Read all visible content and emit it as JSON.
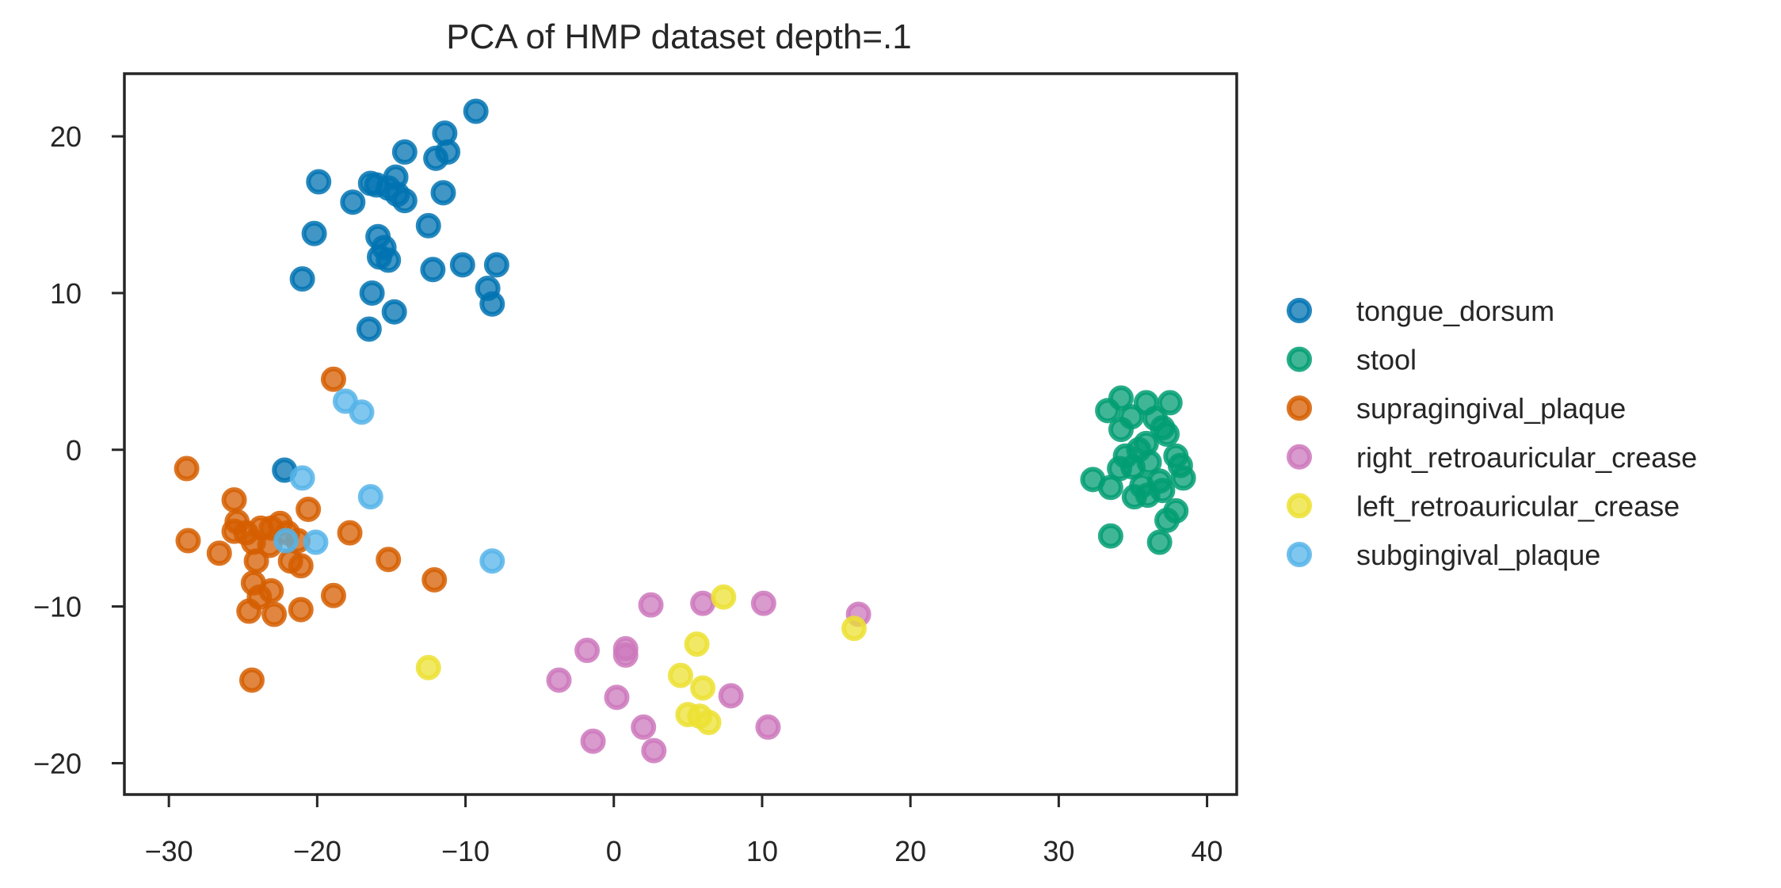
{
  "chart_data": {
    "type": "scatter",
    "title": "PCA of HMP dataset depth=.1",
    "xlabel": "",
    "ylabel": "",
    "xlim": [
      -33,
      42
    ],
    "ylim": [
      -22,
      24
    ],
    "xticks": [
      -30,
      -20,
      -10,
      0,
      10,
      20,
      30,
      40
    ],
    "yticks": [
      -20,
      -10,
      0,
      10,
      20
    ],
    "xtick_labels": [
      "−30",
      "−20",
      "−10",
      "0",
      "10",
      "20",
      "30",
      "40"
    ],
    "ytick_labels": [
      "−20",
      "−10",
      "0",
      "10",
      "20"
    ],
    "grid": false,
    "legend": "outside-right",
    "series": [
      {
        "name": "tongue_dorsum",
        "color": "#0173b2",
        "points": [
          [
            -9.3,
            21.6
          ],
          [
            -11.4,
            20.2
          ],
          [
            -11.2,
            19.0
          ],
          [
            -14.1,
            19.0
          ],
          [
            -12.0,
            18.6
          ],
          [
            -19.9,
            17.1
          ],
          [
            -16.4,
            17.0
          ],
          [
            -14.7,
            17.4
          ],
          [
            -16.0,
            16.9
          ],
          [
            -15.2,
            16.7
          ],
          [
            -14.6,
            16.3
          ],
          [
            -11.5,
            16.4
          ],
          [
            -17.6,
            15.8
          ],
          [
            -14.1,
            15.9
          ],
          [
            -12.5,
            14.3
          ],
          [
            -20.2,
            13.8
          ],
          [
            -15.9,
            13.6
          ],
          [
            -15.5,
            12.9
          ],
          [
            -15.8,
            12.3
          ],
          [
            -15.2,
            12.1
          ],
          [
            -10.2,
            11.8
          ],
          [
            -7.9,
            11.8
          ],
          [
            -12.2,
            11.5
          ],
          [
            -21.0,
            10.9
          ],
          [
            -8.5,
            10.3
          ],
          [
            -16.3,
            10.0
          ],
          [
            -8.2,
            9.3
          ],
          [
            -14.8,
            8.8
          ],
          [
            -16.5,
            7.7
          ],
          [
            -22.2,
            -1.3
          ]
        ]
      },
      {
        "name": "stool",
        "color": "#029e73",
        "points": [
          [
            34.2,
            3.3
          ],
          [
            37.5,
            3.0
          ],
          [
            35.9,
            3.0
          ],
          [
            33.3,
            2.5
          ],
          [
            34.9,
            2.1
          ],
          [
            36.5,
            2.0
          ],
          [
            37.0,
            1.4
          ],
          [
            37.3,
            1.0
          ],
          [
            34.2,
            1.3
          ],
          [
            35.9,
            0.4
          ],
          [
            35.4,
            0.0
          ],
          [
            34.5,
            -0.4
          ],
          [
            37.9,
            -0.4
          ],
          [
            38.2,
            -1.0
          ],
          [
            36.1,
            -0.8
          ],
          [
            35.0,
            -1.1
          ],
          [
            34.1,
            -1.2
          ],
          [
            32.3,
            -1.9
          ],
          [
            38.4,
            -1.8
          ],
          [
            36.8,
            -2.0
          ],
          [
            35.6,
            -2.3
          ],
          [
            33.5,
            -2.4
          ],
          [
            36.0,
            -2.9
          ],
          [
            35.1,
            -3.0
          ],
          [
            37.0,
            -2.6
          ],
          [
            37.9,
            -3.9
          ],
          [
            37.3,
            -4.5
          ],
          [
            33.5,
            -5.5
          ],
          [
            36.8,
            -5.9
          ]
        ]
      },
      {
        "name": "supragingival_plaque",
        "color": "#d55e00",
        "points": [
          [
            -18.9,
            4.5
          ],
          [
            -28.8,
            -1.2
          ],
          [
            -25.6,
            -3.2
          ],
          [
            -20.6,
            -3.8
          ],
          [
            -25.4,
            -4.6
          ],
          [
            -22.5,
            -4.7
          ],
          [
            -25.6,
            -5.2
          ],
          [
            -24.8,
            -5.3
          ],
          [
            -23.8,
            -5.0
          ],
          [
            -23.1,
            -5.0
          ],
          [
            -22.0,
            -5.3
          ],
          [
            -21.3,
            -5.8
          ],
          [
            -23.2,
            -6.1
          ],
          [
            -17.8,
            -5.3
          ],
          [
            -24.3,
            -5.9
          ],
          [
            -28.7,
            -5.8
          ],
          [
            -26.6,
            -6.6
          ],
          [
            -24.1,
            -7.1
          ],
          [
            -21.8,
            -7.1
          ],
          [
            -21.1,
            -7.4
          ],
          [
            -15.2,
            -7.0
          ],
          [
            -12.1,
            -8.3
          ],
          [
            -24.3,
            -8.5
          ],
          [
            -23.1,
            -9.0
          ],
          [
            -18.9,
            -9.3
          ],
          [
            -23.9,
            -9.4
          ],
          [
            -24.6,
            -10.3
          ],
          [
            -22.9,
            -10.5
          ],
          [
            -21.1,
            -10.2
          ],
          [
            -24.4,
            -14.7
          ]
        ]
      },
      {
        "name": "right_retroauricular_crease",
        "color": "#cc78bc",
        "points": [
          [
            16.5,
            -10.5
          ],
          [
            2.5,
            -9.9
          ],
          [
            6.0,
            -9.8
          ],
          [
            10.1,
            -9.8
          ],
          [
            -1.8,
            -12.8
          ],
          [
            0.8,
            -12.7
          ],
          [
            0.8,
            -13.1
          ],
          [
            -3.7,
            -14.7
          ],
          [
            7.9,
            -15.7
          ],
          [
            0.2,
            -15.8
          ],
          [
            2.0,
            -17.7
          ],
          [
            10.4,
            -17.7
          ],
          [
            -1.4,
            -18.6
          ],
          [
            2.7,
            -19.2
          ]
        ]
      },
      {
        "name": "left_retroauricular_crease",
        "color": "#ece133",
        "points": [
          [
            7.4,
            -9.4
          ],
          [
            16.2,
            -11.4
          ],
          [
            5.6,
            -12.4
          ],
          [
            -12.5,
            -13.9
          ],
          [
            4.5,
            -14.4
          ],
          [
            6.0,
            -15.2
          ],
          [
            5.0,
            -16.9
          ],
          [
            5.8,
            -17.0
          ],
          [
            6.4,
            -17.4
          ]
        ]
      },
      {
        "name": "subgingival_plaque",
        "color": "#56b4e9",
        "points": [
          [
            -18.1,
            3.1
          ],
          [
            -17.0,
            2.4
          ],
          [
            -21.0,
            -1.8
          ],
          [
            -16.4,
            -3.0
          ],
          [
            -22.1,
            -5.8
          ],
          [
            -20.1,
            -5.9
          ],
          [
            -8.2,
            -7.1
          ]
        ]
      }
    ]
  }
}
